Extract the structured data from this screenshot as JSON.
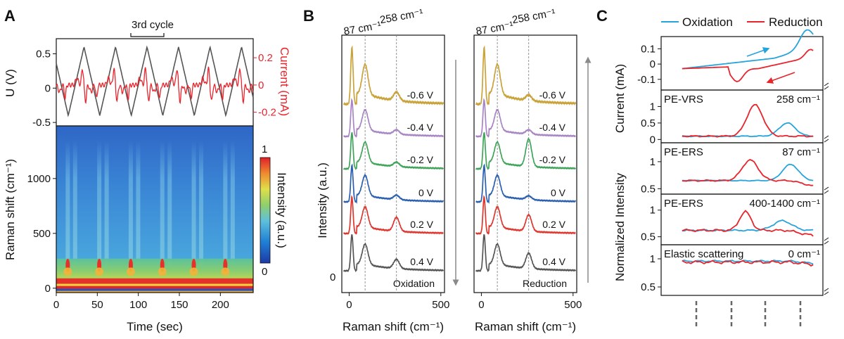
{
  "colors": {
    "voltage": "#555555",
    "current": "#e8242c",
    "oxidation": "#27a4db",
    "reduction": "#e8242c",
    "arrow_gray": "#8a8a8a",
    "spectra": [
      "#c9a23a",
      "#a784c4",
      "#3fa45a",
      "#2a5fb0",
      "#e0352d",
      "#555555"
    ]
  },
  "chart_data": [
    {
      "panel": "A",
      "type": "line",
      "title": "",
      "annotation": "3rd cycle",
      "ylabel": "U (V)",
      "ylabel_right": "Current (mA)",
      "ylim": [
        -0.55,
        0.72
      ],
      "yticks": [
        "0.5",
        "0",
        "-0.5"
      ],
      "ylim_right": [
        -0.3,
        0.34
      ],
      "yticks_right": [
        "0.2",
        "0",
        "-0.2"
      ],
      "xlim": [
        0,
        240
      ],
      "cycles": 6,
      "series": [
        {
          "key": "U",
          "min": -0.4,
          "max": 0.6
        },
        {
          "key": "Current"
        }
      ]
    },
    {
      "panel": "A",
      "type": "heatmap",
      "xlabel": "Time (sec)",
      "ylabel": "Raman shift (cm-1)",
      "ylabel_text": "Raman shift (cm⁻¹)",
      "xticks": [
        "0",
        "50",
        "100",
        "150",
        "200"
      ],
      "xtick_values": [
        0,
        50,
        100,
        150,
        200
      ],
      "yticks": [
        "0",
        "500",
        "1000"
      ],
      "ytick_values": [
        0,
        500,
        1000
      ],
      "xlim": [
        0,
        240
      ],
      "ylim": [
        -40,
        1480
      ],
      "colorbar_label": "Intensity (a.u.)",
      "colorbar_ticks": [
        "1",
        "0"
      ]
    },
    {
      "panel": "B",
      "type": "line",
      "xlabel": "Raman shift (cm-1)",
      "xlabel_text": "Raman shift (cm⁻¹)",
      "ylabel": "Intensity (a.u.)",
      "xlim": [
        -40,
        520
      ],
      "xticks": [
        "0",
        "500"
      ],
      "peak_labels": [
        "87 cm⁻¹",
        "258 cm⁻¹"
      ],
      "peak_positions": [
        87,
        258
      ],
      "y_zero_label": "0",
      "subplots": [
        {
          "name": "Oxidation",
          "potentials": [
            "-0.6 V",
            "-0.4 V",
            "-0.2 V",
            "0 V",
            "0.2 V",
            "0.4 V"
          ],
          "arrow": "down",
          "peak258": [
            0.15,
            0.12,
            0.12,
            0.12,
            0.38,
            0.25
          ]
        },
        {
          "name": "Reduction",
          "potentials": [
            "-0.6 V",
            "-0.4 V",
            "-0.2 V",
            "0 V",
            "0.2 V",
            "0.4 V"
          ],
          "arrow": "up",
          "peak258": [
            0.1,
            0.12,
            0.75,
            0.1,
            0.45,
            0.42
          ]
        }
      ]
    },
    {
      "panel": "C",
      "type": "line",
      "legend": [
        "Oxidation",
        "Reduction"
      ],
      "legend_position": "top",
      "ylabel_top": "Current (mA)",
      "ylabel_bottom": "Normalized Intensity",
      "subplots": [
        {
          "label": "",
          "right_label": "",
          "yticks": [
            "0.1",
            "0",
            "-0.1"
          ],
          "ylim": [
            -0.17,
            0.18
          ]
        },
        {
          "label": "PE-VRS",
          "right_label": "258 cm⁻¹",
          "yticks": [
            "1",
            "0.5",
            "0"
          ],
          "ylim": [
            -0.1,
            1.5
          ]
        },
        {
          "label": "PE-ERS",
          "right_label": "87 cm⁻¹",
          "yticks": [
            "1",
            "0.5"
          ],
          "ylim": [
            0.4,
            1.35
          ]
        },
        {
          "label": "PE-ERS",
          "right_label": "400-1400 cm⁻¹",
          "yticks": [
            "1",
            "0.5"
          ],
          "ylim": [
            0.35,
            1.3
          ]
        },
        {
          "label": "Elastic scattering",
          "right_label": "0 cm⁻¹",
          "yticks": [
            "1",
            "0.5"
          ],
          "ylim": [
            0.35,
            1.25
          ]
        }
      ]
    }
  ],
  "labels": {
    "A": "A",
    "B": "B",
    "C": "C"
  }
}
